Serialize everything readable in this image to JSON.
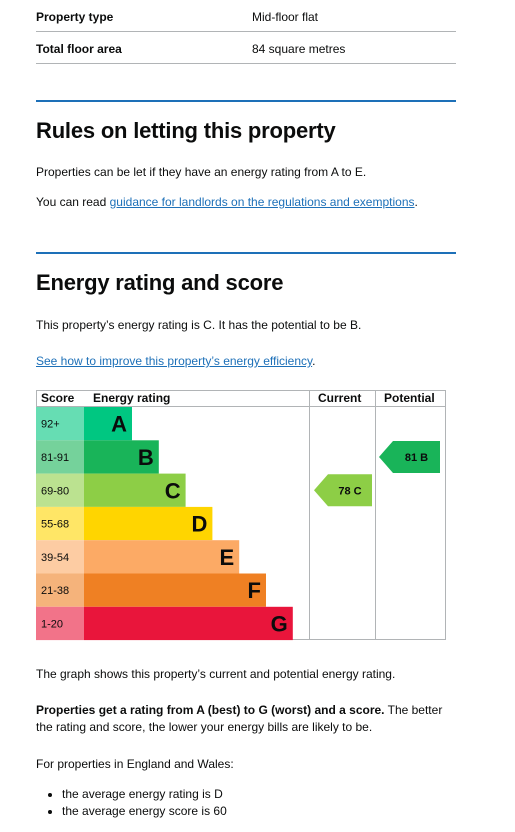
{
  "summary": [
    {
      "key": "Property type",
      "value": "Mid-floor flat"
    },
    {
      "key": "Total floor area",
      "value": "84 square metres"
    }
  ],
  "letting": {
    "heading": "Rules on letting this property",
    "para1": "Properties can be let if they have an energy rating from A to E.",
    "para2_prefix": "You can read ",
    "para2_link": "guidance for landlords on the regulations and exemptions",
    "para2_suffix": "."
  },
  "energy": {
    "heading": "Energy rating and score",
    "para1": "This property’s energy rating is C. It has the potential to be B.",
    "link": "See how to improve this property’s energy efficiency",
    "link_suffix": "."
  },
  "chart_data": {
    "type": "table",
    "headers": {
      "score": "Score",
      "rating": "Energy rating",
      "current": "Current",
      "potential": "Potential"
    },
    "bands": [
      {
        "score": "92+",
        "letter": "A",
        "color": "#00c781"
      },
      {
        "score": "81-91",
        "letter": "B",
        "color": "#19b459"
      },
      {
        "score": "69-80",
        "letter": "C",
        "color": "#8dce46"
      },
      {
        "score": "55-68",
        "letter": "D",
        "color": "#ffd500"
      },
      {
        "score": "39-54",
        "letter": "E",
        "color": "#fcaa65"
      },
      {
        "score": "21-38",
        "letter": "F",
        "color": "#ef8023"
      },
      {
        "score": "1-20",
        "letter": "G",
        "color": "#e9153b"
      }
    ],
    "current": {
      "score": 78,
      "letter": "C",
      "label": "78 C",
      "color": "#8dce46"
    },
    "potential": {
      "score": 81,
      "letter": "B",
      "label": "81 B",
      "color": "#19b459"
    }
  },
  "after": {
    "graph_note": "The graph shows this property’s current and potential energy rating.",
    "bold_part": "Properties get a rating from A (best) to G (worst) and a score.",
    "rest_part": " The better the rating and score, the lower your energy bills are likely to be.",
    "ew_intro": "For properties in England and Wales:",
    "bullets": [
      "the average energy rating is D",
      "the average energy score is 60"
    ]
  }
}
